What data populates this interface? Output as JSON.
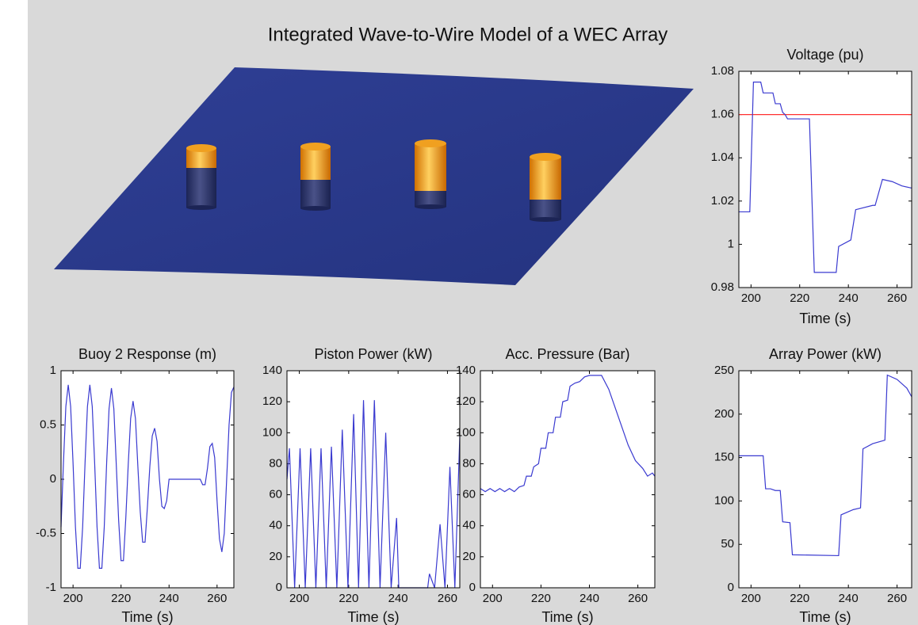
{
  "title": "Integrated Wave-to-Wire Model of a WEC Array",
  "chart_data": [
    {
      "type": "line",
      "title": "Voltage (pu)",
      "xlabel": "Time (s)",
      "color": "#3a3ad0",
      "xlim": [
        195,
        266
      ],
      "xticks": [
        200,
        220,
        240,
        260
      ],
      "ylim": [
        0.98,
        1.08
      ],
      "yticks": [
        0.98,
        1,
        1.02,
        1.04,
        1.06,
        1.08
      ],
      "hline": 1.06,
      "hline_color": "#ff3030",
      "x": [
        195,
        199.5,
        201,
        204,
        205,
        209,
        210,
        212,
        213,
        214,
        215,
        224,
        226,
        235,
        236,
        241,
        243,
        250,
        251,
        254,
        258,
        262,
        266
      ],
      "values": [
        1.015,
        1.015,
        1.075,
        1.075,
        1.07,
        1.07,
        1.065,
        1.065,
        1.061,
        1.06,
        1.058,
        1.058,
        0.987,
        0.987,
        0.999,
        1.002,
        1.016,
        1.018,
        1.018,
        1.03,
        1.029,
        1.027,
        1.026
      ]
    },
    {
      "type": "line",
      "title": "Buoy 2 Response (m)",
      "xlabel": "Time (s)",
      "color": "#3a3ad0",
      "xlim": [
        195,
        267
      ],
      "xticks": [
        200,
        220,
        240,
        260
      ],
      "ylim": [
        -1,
        1
      ],
      "yticks": [
        -1,
        -0.5,
        0,
        0.5,
        1
      ],
      "x": [
        195,
        196,
        197,
        198,
        199,
        200,
        201,
        202,
        203,
        204,
        205,
        206,
        207,
        208,
        209,
        210,
        211,
        212,
        213,
        214,
        215,
        216,
        217,
        218,
        219,
        220,
        221,
        222,
        223,
        224,
        225,
        226,
        227,
        228,
        229,
        230,
        231,
        232,
        233,
        234,
        235,
        236,
        237,
        238,
        239,
        240,
        253,
        254,
        255,
        256,
        257,
        258,
        259,
        260,
        261,
        262,
        263,
        264,
        265,
        266,
        267
      ],
      "values": [
        -0.44,
        0.15,
        0.67,
        0.87,
        0.67,
        0.15,
        -0.44,
        -0.82,
        -0.82,
        -0.44,
        0.15,
        0.67,
        0.87,
        0.67,
        0.15,
        -0.44,
        -0.82,
        -0.82,
        -0.44,
        0.15,
        0.65,
        0.84,
        0.65,
        0.14,
        -0.38,
        -0.75,
        -0.75,
        -0.35,
        0.14,
        0.56,
        0.72,
        0.56,
        0.12,
        -0.3,
        -0.58,
        -0.58,
        -0.25,
        0.12,
        0.4,
        0.47,
        0.35,
        0,
        -0.25,
        -0.27,
        -0.2,
        0,
        0,
        -0.05,
        -0.05,
        0.1,
        0.3,
        0.33,
        0.2,
        -0.2,
        -0.55,
        -0.67,
        -0.5,
        0,
        0.5,
        0.8,
        0.85
      ]
    },
    {
      "type": "line",
      "title": "Piston Power (kW)",
      "xlabel": "Time (s)",
      "color": "#3a3ad0",
      "xlim": [
        195,
        265
      ],
      "xticks": [
        200,
        220,
        240,
        260
      ],
      "ylim": [
        0,
        140
      ],
      "yticks": [
        0,
        20,
        40,
        60,
        80,
        100,
        120,
        140
      ],
      "x": [
        195,
        196,
        198.1,
        200.3,
        202.4,
        204.6,
        206.7,
        208.8,
        210.9,
        213,
        215.2,
        217.4,
        219.7,
        222,
        224,
        226,
        228.2,
        230.4,
        232.7,
        235,
        237.2,
        239.4,
        240.3,
        252,
        252.7,
        254.8,
        257,
        259,
        261,
        263,
        265
      ],
      "values": [
        70,
        90,
        0,
        90,
        0,
        90,
        0,
        90,
        0,
        91,
        0,
        102,
        0,
        112,
        0,
        121,
        0,
        121,
        0,
        100,
        0,
        45,
        0,
        0,
        9,
        0,
        41,
        0,
        78,
        0,
        98
      ]
    },
    {
      "type": "line",
      "title": "Acc. Pressure (Bar)",
      "xlabel": "Time (s)",
      "color": "#3a3ad0",
      "xlim": [
        195,
        267
      ],
      "xticks": [
        200,
        220,
        240,
        260
      ],
      "ylim": [
        0,
        140
      ],
      "yticks": [
        0,
        20,
        40,
        60,
        80,
        100,
        120,
        140
      ],
      "x": [
        195,
        197,
        199,
        201,
        203,
        205,
        207,
        209,
        211,
        213,
        214,
        216,
        217,
        219,
        220,
        222,
        223,
        225,
        226,
        228,
        229,
        231,
        232,
        234,
        236,
        238,
        240,
        245,
        248,
        252,
        256,
        259,
        262,
        264,
        266,
        267
      ],
      "values": [
        64,
        62,
        64,
        62,
        64,
        62,
        64,
        62,
        65,
        66,
        72,
        72,
        78,
        80,
        90,
        90,
        100,
        100,
        110,
        110,
        120,
        121,
        130,
        132,
        133,
        136,
        137,
        137,
        128,
        110,
        92,
        82,
        77,
        72,
        74,
        72
      ]
    },
    {
      "type": "line",
      "title": "Array Power (kW)",
      "xlabel": "Time (s)",
      "color": "#3a3ad0",
      "xlim": [
        195,
        266
      ],
      "xticks": [
        200,
        220,
        240,
        260
      ],
      "ylim": [
        0,
        250
      ],
      "yticks": [
        0,
        50,
        100,
        150,
        200,
        250
      ],
      "x": [
        195,
        205,
        206,
        208,
        210,
        212,
        213,
        216,
        217,
        236,
        237,
        242,
        245,
        246,
        250,
        255,
        256,
        260,
        264,
        266
      ],
      "values": [
        152,
        152,
        114,
        114,
        112,
        112,
        76,
        75,
        38,
        37,
        84,
        90,
        92,
        160,
        166,
        170,
        245,
        240,
        230,
        220
      ]
    }
  ]
}
